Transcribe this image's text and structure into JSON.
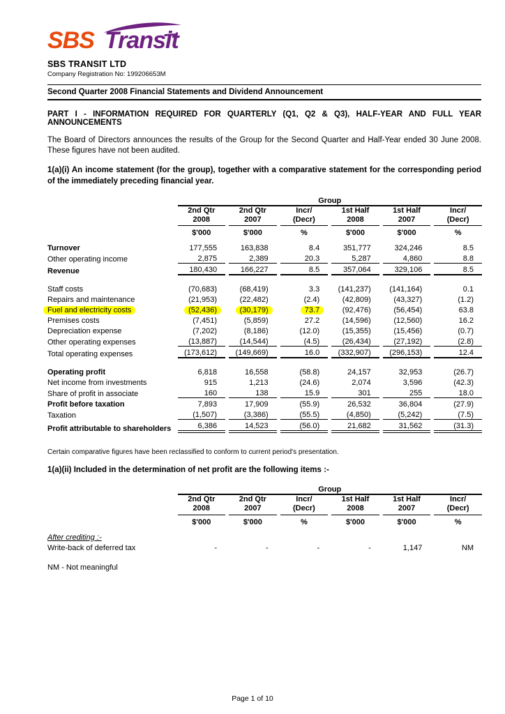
{
  "highlight_color": "#FFFF00",
  "logo": {
    "sbs": "SBS",
    "transit": "Transit",
    "sbs_color": "#E8490D",
    "transit_color": "#6E2181"
  },
  "header": {
    "company_name": "SBS TRANSIT LTD",
    "company_registration": "Company Registration No: 199206653M",
    "document_title": "Second Quarter 2008 Financial Statements and Dividend Announcement"
  },
  "part1": {
    "heading": "PART I - INFORMATION REQUIRED FOR QUARTERLY (Q1, Q2 & Q3), HALF-YEAR AND FULL YEAR ANNOUNCEMENTS",
    "intro": "The Board of Directors announces the results of the Group for the Second Quarter and Half-Year ended 30 June 2008.  These figures have not been audited.",
    "section_1ai_heading": "1(a)(i) An income statement (for the group), together with a comparative statement for the corresponding period of the immediately preceding financial year."
  },
  "table_header": {
    "group": "Group",
    "columns": [
      {
        "line1": "2nd Qtr",
        "line2": "2008",
        "unit": "$'000"
      },
      {
        "line1": "2nd Qtr",
        "line2": "2007",
        "unit": "$'000"
      },
      {
        "line1": "Incr/",
        "line2": "(Decr)",
        "unit": "%"
      },
      {
        "line1": "1st Half",
        "line2": "2008",
        "unit": "$'000"
      },
      {
        "line1": "1st Half",
        "line2": "2007",
        "unit": "$'000"
      },
      {
        "line1": "Incr/",
        "line2": "(Decr)",
        "unit": "%"
      }
    ]
  },
  "income_statement": {
    "rows": [
      {
        "label": "Turnover",
        "bold": true,
        "values": [
          "177,555",
          "163,838",
          "8.4",
          "351,777",
          "324,246",
          "8.5"
        ]
      },
      {
        "label": "Other operating income",
        "values": [
          "2,875",
          "2,389",
          "20.3",
          "5,287",
          "4,860",
          "8.8"
        ],
        "line": "u"
      },
      {
        "label": "Revenue",
        "bold": true,
        "values": [
          "180,430",
          "166,227",
          "8.5",
          "357,064",
          "329,106",
          "8.5"
        ],
        "line": "h",
        "spacer_after": true
      },
      {
        "label": "Staff costs",
        "values": [
          "(70,683)",
          "(68,419)",
          "3.3",
          "(141,237)",
          "(141,164)",
          "0.1"
        ]
      },
      {
        "label": "Repairs and maintenance",
        "values": [
          "(21,953)",
          "(22,482)",
          "(2.4)",
          "(42,809)",
          "(43,327)",
          "(1.2)"
        ]
      },
      {
        "label": "Fuel and electricity costs",
        "values": [
          "(52,436)",
          "(30,179)",
          "73.7",
          "(92,476)",
          "(56,454)",
          "63.8"
        ],
        "highlight": {
          "label": true,
          "cols": [
            0,
            1,
            2
          ]
        }
      },
      {
        "label": "Premises costs",
        "values": [
          "(7,451)",
          "(5,859)",
          "27.2",
          "(14,596)",
          "(12,560)",
          "16.2"
        ]
      },
      {
        "label": "Depreciation expense",
        "values": [
          "(7,202)",
          "(8,186)",
          "(12.0)",
          "(15,355)",
          "(15,456)",
          "(0.7)"
        ]
      },
      {
        "label": "Other operating expenses",
        "values": [
          "(13,887)",
          "(14,544)",
          "(4.5)",
          "(26,434)",
          "(27,192)",
          "(2.8)"
        ],
        "line": "u"
      },
      {
        "label": "Total operating expenses",
        "values": [
          "(173,612)",
          "(149,669)",
          "16.0",
          "(332,907)",
          "(296,153)",
          "12.4"
        ],
        "line": "h",
        "spacer_after": true
      },
      {
        "label": "Operating profit",
        "bold": true,
        "values": [
          "6,818",
          "16,558",
          "(58.8)",
          "24,157",
          "32,953",
          "(26.7)"
        ]
      },
      {
        "label": "Net income from investments",
        "values": [
          "915",
          "1,213",
          "(24.6)",
          "2,074",
          "3,596",
          "(42.3)"
        ]
      },
      {
        "label": "Share of profit in associate",
        "values": [
          "160",
          "138",
          "15.9",
          "301",
          "255",
          "18.0"
        ],
        "line": "u"
      },
      {
        "label": "Profit before taxation",
        "bold": true,
        "values": [
          "7,893",
          "17,909",
          "(55.9)",
          "26,532",
          "36,804",
          "(27.9)"
        ]
      },
      {
        "label": "Taxation",
        "values": [
          "(1,507)",
          "(3,386)",
          "(55.5)",
          "(4,850)",
          "(5,242)",
          "(7.5)"
        ],
        "line": "u"
      },
      {
        "label": "Profit attributable to shareholders",
        "bold": true,
        "values": [
          "6,386",
          "14,523",
          "(56.0)",
          "21,682",
          "31,562",
          "(31.3)"
        ],
        "line": "d"
      }
    ]
  },
  "notes": {
    "reclassification": "Certain comparative figures have been reclassified to conform to current period's presentation.",
    "nm": "NM - Not meaningful"
  },
  "section_1aii": {
    "heading": "1(a)(ii) Included in the determination of net profit are the following items :-",
    "rows": [
      {
        "label": "After crediting :-",
        "label_style": "italic-underline",
        "values": [
          "",
          "",
          "",
          "",
          "",
          ""
        ]
      },
      {
        "label": "Write-back of deferred tax",
        "values": [
          "-",
          "-",
          "-",
          "-",
          "1,147",
          "NM"
        ]
      }
    ]
  },
  "footer": {
    "page": "Page 1 of 10"
  }
}
